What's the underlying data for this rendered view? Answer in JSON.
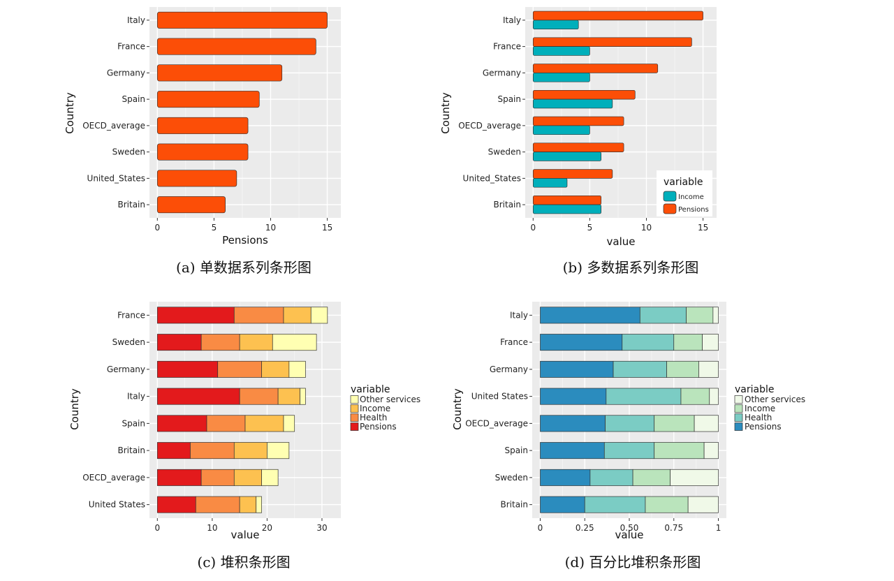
{
  "chart_data": [
    {
      "id": "a",
      "type": "bar",
      "orientation": "horizontal",
      "caption": "(a)  单数据系列条形图",
      "xlabel": "Pensions",
      "ylabel": "Country",
      "categories": [
        "Italy",
        "France",
        "Germany",
        "Spain",
        "OECD_average",
        "Sweden",
        "United_States",
        "Britain"
      ],
      "series": [
        {
          "values": [
            15,
            14,
            11,
            9,
            8,
            8,
            7,
            6
          ]
        }
      ],
      "xlim": [
        0,
        15.5
      ],
      "xticks": [
        0,
        5,
        10,
        15
      ],
      "xtick_labels": [
        "0",
        "5",
        "10",
        "15"
      ],
      "grid": true,
      "colors": {
        "Pensions": "#fc4e07"
      }
    },
    {
      "id": "b",
      "type": "bar",
      "orientation": "horizontal",
      "barmode": "dodge",
      "caption": "(b)  多数据系列条形图",
      "xlabel": "value",
      "ylabel": "Country",
      "categories": [
        "Italy",
        "France",
        "Germany",
        "Spain",
        "OECD_average",
        "Sweden",
        "United_States",
        "Britain"
      ],
      "series": [
        {
          "name": "Pensions",
          "values": [
            15,
            14,
            11,
            9,
            8,
            8,
            7,
            6
          ]
        },
        {
          "name": "Income",
          "values": [
            4,
            5,
            5,
            7,
            5,
            6,
            3,
            6
          ]
        }
      ],
      "xlim": [
        0,
        15.5
      ],
      "xticks": [
        0,
        5,
        10,
        15
      ],
      "xtick_labels": [
        "0",
        "5",
        "10",
        "15"
      ],
      "legend": {
        "title": "variable",
        "items": [
          "Income",
          "Pensions"
        ],
        "position": "bottom-right-inside"
      },
      "grid": true,
      "colors": {
        "Pensions": "#fc4e07",
        "Income": "#00afbb"
      }
    },
    {
      "id": "c",
      "type": "bar",
      "orientation": "horizontal",
      "barmode": "stack",
      "caption": "(c)  堆积条形图",
      "xlabel": "value",
      "ylabel": "Country",
      "categories": [
        "France",
        "Sweden",
        "Germany",
        "Italy",
        "Spain",
        "Britain",
        "OECD_average",
        "United States"
      ],
      "series": [
        {
          "name": "Pensions",
          "values": [
            14,
            8,
            11,
            15,
            9,
            6,
            8,
            7
          ]
        },
        {
          "name": "Health",
          "values": [
            9,
            7,
            8,
            7,
            7,
            8,
            6,
            8
          ]
        },
        {
          "name": "Income",
          "values": [
            5,
            6,
            5,
            4,
            7,
            6,
            5,
            3
          ]
        },
        {
          "name": "Other services",
          "values": [
            3,
            8,
            3,
            1,
            2,
            4,
            3,
            1
          ]
        }
      ],
      "xlim": [
        0,
        32
      ],
      "xticks": [
        0,
        10,
        20,
        30
      ],
      "xtick_labels": [
        "0",
        "10",
        "20",
        "30"
      ],
      "legend": {
        "title": "variable",
        "items": [
          "Other services",
          "Income",
          "Health",
          "Pensions"
        ],
        "position": "right"
      },
      "grid": true,
      "colors": {
        "Pensions": "#e31a1c",
        "Health": "#f98b44",
        "Income": "#fdc150",
        "Other services": "#ffffb2"
      }
    },
    {
      "id": "d",
      "type": "bar",
      "orientation": "horizontal",
      "barmode": "fill",
      "caption": "(d)  百分比堆积条形图",
      "xlabel": "value",
      "ylabel": "Country",
      "categories": [
        "Italy",
        "France",
        "Germany",
        "United States",
        "OECD_average",
        "Spain",
        "Sweden",
        "Britain"
      ],
      "series": [
        {
          "name": "Pensions",
          "values": [
            0.56,
            0.46,
            0.41,
            0.37,
            0.365,
            0.36,
            0.28,
            0.25
          ]
        },
        {
          "name": "Health",
          "values": [
            0.26,
            0.29,
            0.3,
            0.42,
            0.275,
            0.28,
            0.24,
            0.34
          ]
        },
        {
          "name": "Income",
          "values": [
            0.15,
            0.16,
            0.18,
            0.16,
            0.225,
            0.28,
            0.21,
            0.24
          ]
        },
        {
          "name": "Other services",
          "values": [
            0.03,
            0.09,
            0.11,
            0.05,
            0.135,
            0.08,
            0.27,
            0.17
          ]
        }
      ],
      "xlim": [
        0,
        1
      ],
      "xticks": [
        0,
        0.25,
        0.5,
        0.75,
        1
      ],
      "xtick_labels": [
        "0",
        "0.25",
        "0.50",
        "0.75",
        "1"
      ],
      "legend": {
        "title": "variable",
        "items": [
          "Other services",
          "Income",
          "Health",
          "Pensions"
        ],
        "position": "right"
      },
      "grid": true,
      "colors": {
        "Pensions": "#2b8cbe",
        "Health": "#7bccc4",
        "Income": "#bae4bc",
        "Other services": "#f0f9e8"
      }
    }
  ]
}
